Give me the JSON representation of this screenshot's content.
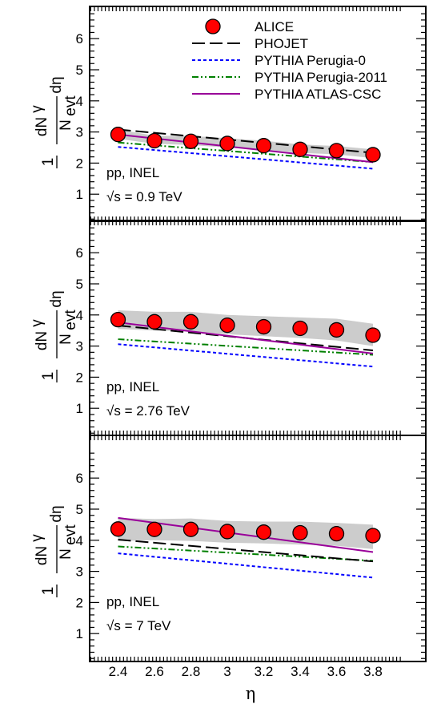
{
  "chart_data": {
    "type": "line",
    "xlabel": "η",
    "ylabel": {
      "prefix": "1",
      "denominator": "N",
      "denominator_sub": "evt",
      "numerator": "dN",
      "numerator_sub": "γ",
      "d_var": "dη"
    },
    "xlim": [
      2.25,
      3.95
    ],
    "ylim": [
      0,
      6.9
    ],
    "x_ticks": [
      "2.4",
      "2.6",
      "2.8",
      "3",
      "3.2",
      "3.4",
      "3.6",
      "3.8"
    ],
    "y_ticks": [
      "1",
      "2",
      "3",
      "4",
      "5",
      "6"
    ],
    "legend": {
      "placement": "top-right",
      "entries": [
        "ALICE",
        "PHOJET",
        "PYTHIA Perugia-0",
        "PYTHIA Perugia-2011",
        "PYTHIA ATLAS-CSC"
      ]
    },
    "colors": {
      "ALICE": "#ff0000",
      "PHOJET": "#000000",
      "PYTHIA Perugia-0": "#0000ff",
      "PYTHIA Perugia-2011": "#008000",
      "PYTHIA ATLAS-CSC": "#990099",
      "band": "#cccccc"
    },
    "x": [
      2.4,
      2.6,
      2.8,
      3.0,
      3.2,
      3.4,
      3.6,
      3.8
    ],
    "panels": [
      {
        "system": "pp, INEL",
        "energy_prefix": "√s",
        "energy_suffix": " = 0.9 TeV",
        "alice": [
          2.92,
          2.72,
          2.7,
          2.63,
          2.56,
          2.44,
          2.4,
          2.27
        ],
        "band_low": [
          2.78,
          2.62,
          2.58,
          2.5,
          2.43,
          2.33,
          2.28,
          2.16
        ],
        "band_high": [
          3.08,
          2.88,
          2.87,
          2.8,
          2.72,
          2.6,
          2.55,
          2.44
        ],
        "phojet": [
          3.08,
          2.33
        ],
        "perugia0": [
          2.52,
          1.82
        ],
        "perugia2011": [
          2.66,
          2.03
        ],
        "atlas_csc": [
          2.92,
          2.03
        ]
      },
      {
        "system": "pp, INEL",
        "energy_prefix": "√s",
        "energy_suffix": " = 2.76 TeV",
        "alice": [
          3.85,
          3.78,
          3.78,
          3.67,
          3.62,
          3.57,
          3.52,
          3.35
        ],
        "band_low": [
          3.55,
          3.5,
          3.48,
          3.38,
          3.32,
          3.26,
          3.18,
          3.0
        ],
        "band_high": [
          4.15,
          4.1,
          4.1,
          4.0,
          3.96,
          3.92,
          3.88,
          3.72
        ],
        "phojet": [
          3.66,
          2.86
        ],
        "perugia0": [
          3.06,
          2.34
        ],
        "perugia2011": [
          3.22,
          2.72
        ],
        "atlas_csc": [
          3.76,
          2.76
        ]
      },
      {
        "system": "pp, INEL",
        "energy_prefix": "√s",
        "energy_suffix": " = 7 TeV",
        "alice": [
          4.36,
          4.35,
          4.35,
          4.28,
          4.26,
          4.24,
          4.21,
          4.15
        ],
        "band_low": [
          3.98,
          4.0,
          3.98,
          3.92,
          3.9,
          3.86,
          3.82,
          3.72
        ],
        "band_high": [
          4.72,
          4.68,
          4.7,
          4.62,
          4.6,
          4.6,
          4.56,
          4.5
        ],
        "phojet": [
          4.02,
          3.32
        ],
        "perugia0": [
          3.58,
          2.8
        ],
        "perugia2011": [
          3.8,
          3.34
        ],
        "atlas_csc": [
          4.72,
          3.62
        ]
      }
    ]
  }
}
